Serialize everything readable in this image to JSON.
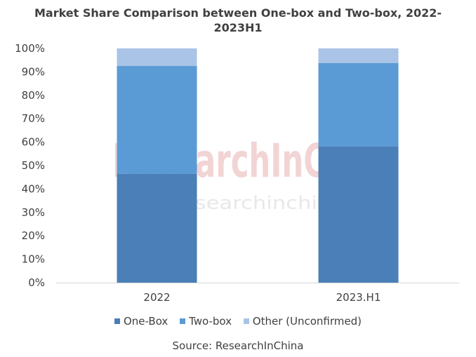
{
  "chart_data": {
    "type": "bar",
    "stacked": true,
    "title_line1": "Market Share Comparison between One-box and Two-box, 2022-",
    "title_line2": "2023H1",
    "categories": [
      "2022",
      "2023.H1"
    ],
    "series": [
      {
        "name": "One-Box",
        "values": [
          46.5,
          58.2
        ],
        "color": "#4a7fb8"
      },
      {
        "name": "Two-box",
        "values": [
          46.0,
          35.6
        ],
        "color": "#5b9bd5"
      },
      {
        "name": "Other (Unconfirmed)",
        "values": [
          7.5,
          6.2
        ],
        "color": "#a9c4e6"
      }
    ],
    "ylim": [
      0,
      100
    ],
    "yticks": [
      "0%",
      "10%",
      "20%",
      "30%",
      "40%",
      "50%",
      "60%",
      "70%",
      "80%",
      "90%",
      "100%"
    ],
    "legend_position": "bottom",
    "grid": false
  },
  "watermark": {
    "brand": "ResearchInChina",
    "url": "www.researchinchina.com",
    "brand_color": "#e8b0b0",
    "url_color": "#e2e2e2"
  },
  "source": "Source: ResearchInChina"
}
